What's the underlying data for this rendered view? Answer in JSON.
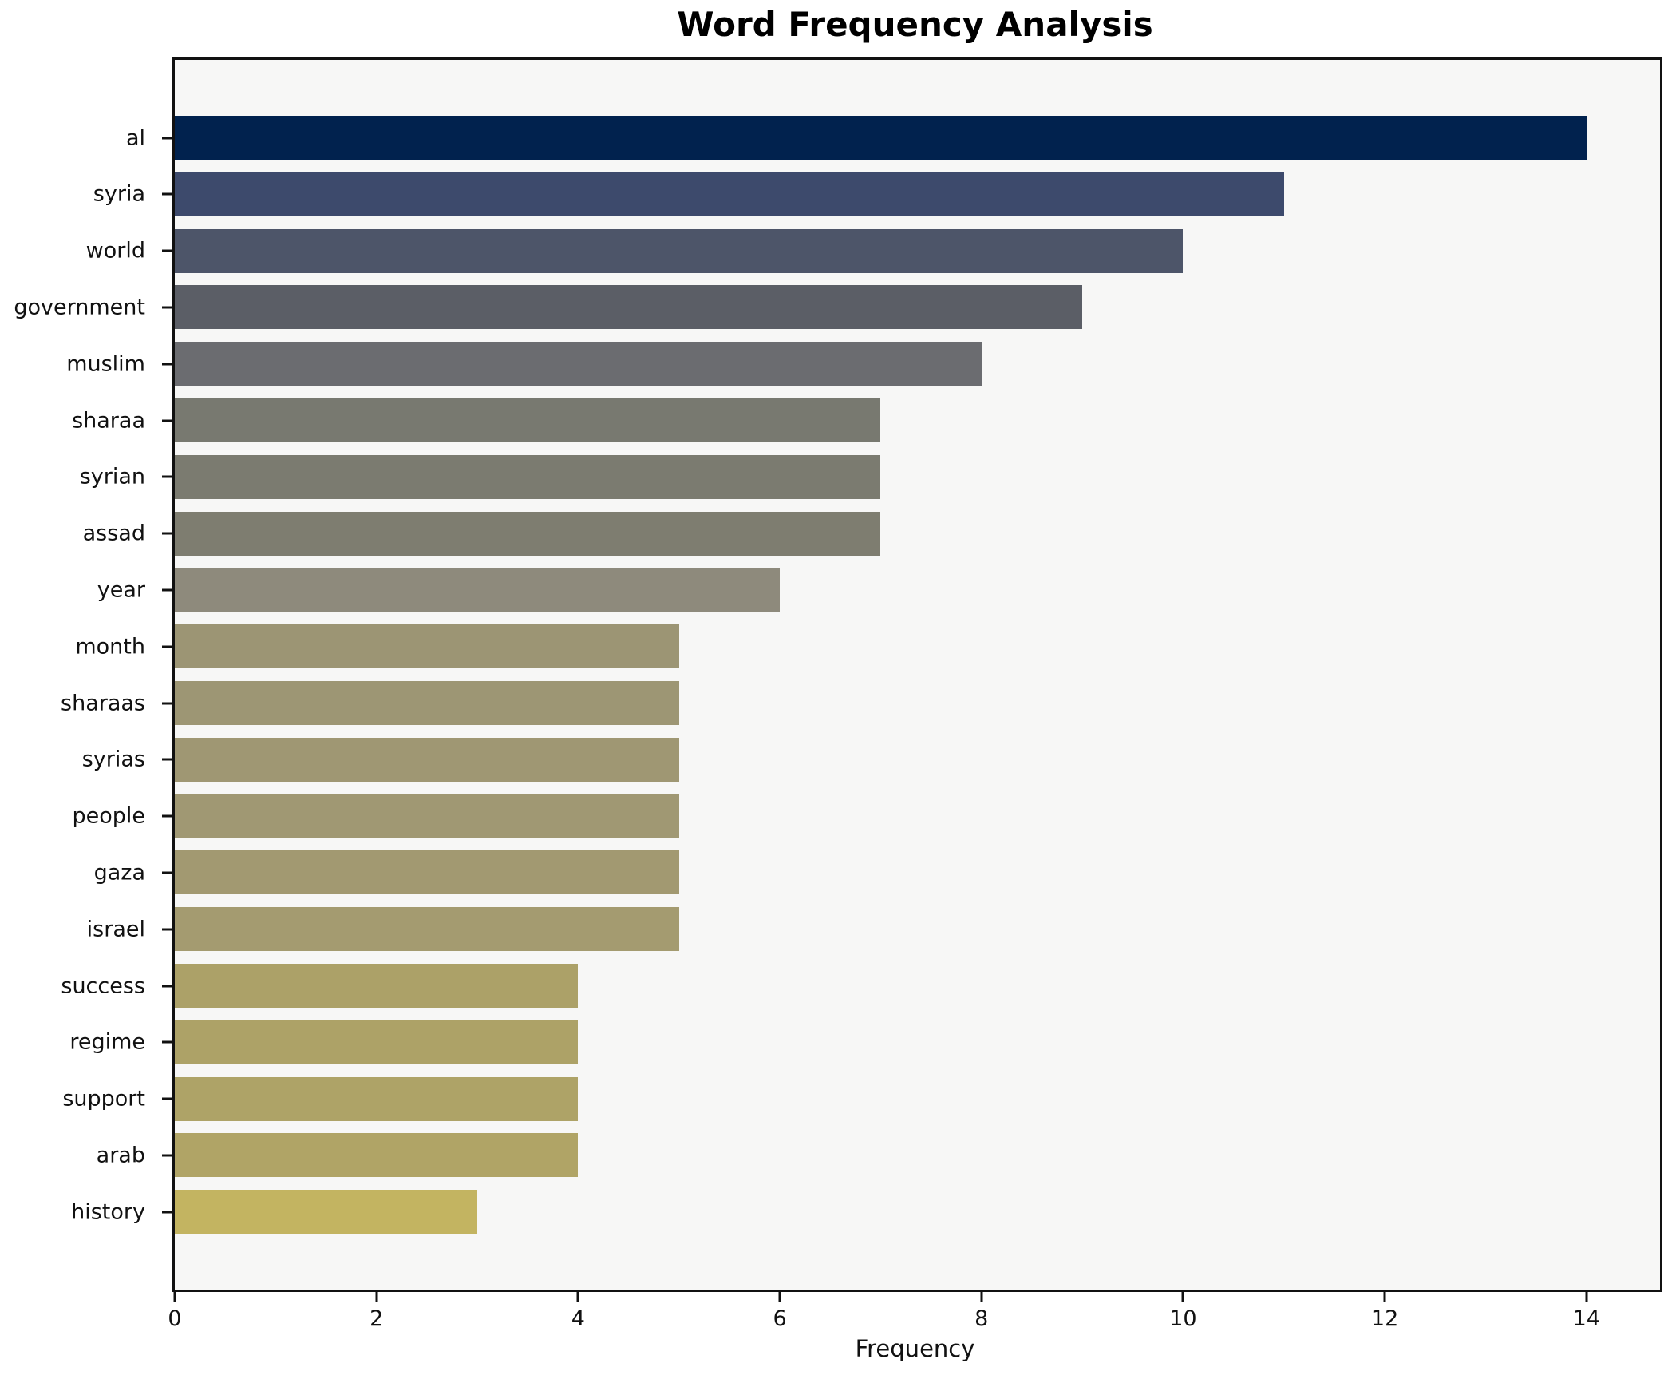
{
  "header": {
    "title": "Word Frequency Analysis"
  },
  "chart_data": {
    "type": "bar",
    "orientation": "horizontal",
    "title": "Word Frequency Analysis",
    "xlabel": "Frequency",
    "ylabel": "",
    "categories": [
      "al",
      "syria",
      "world",
      "government",
      "muslim",
      "sharaa",
      "syrian",
      "assad",
      "year",
      "month",
      "sharaas",
      "syrias",
      "people",
      "gaza",
      "israel",
      "success",
      "regime",
      "support",
      "arab",
      "history"
    ],
    "values": [
      14,
      11,
      10,
      9,
      8,
      7,
      7,
      7,
      6,
      5,
      5,
      5,
      5,
      5,
      5,
      4,
      4,
      4,
      4,
      3
    ],
    "bar_colors": [
      "#01224e",
      "#3d4a6c",
      "#4d5569",
      "#5b5e66",
      "#6b6c70",
      "#787970",
      "#7b7b70",
      "#7e7d70",
      "#8e8a7c",
      "#9c9574",
      "#9d9674",
      "#9f9773",
      "#a09873",
      "#a29971",
      "#a49b70",
      "#aca168",
      "#ada267",
      "#aea367",
      "#b0a466",
      "#c3b461"
    ],
    "xticks": [
      0,
      2,
      4,
      6,
      8,
      10,
      12,
      14
    ],
    "xlim": [
      0,
      14.73
    ],
    "grid": false,
    "legend": null,
    "plot_bg_color": "#f7f7f6",
    "figure_bg_color": "#ffffff",
    "frame_color": "#111111"
  }
}
